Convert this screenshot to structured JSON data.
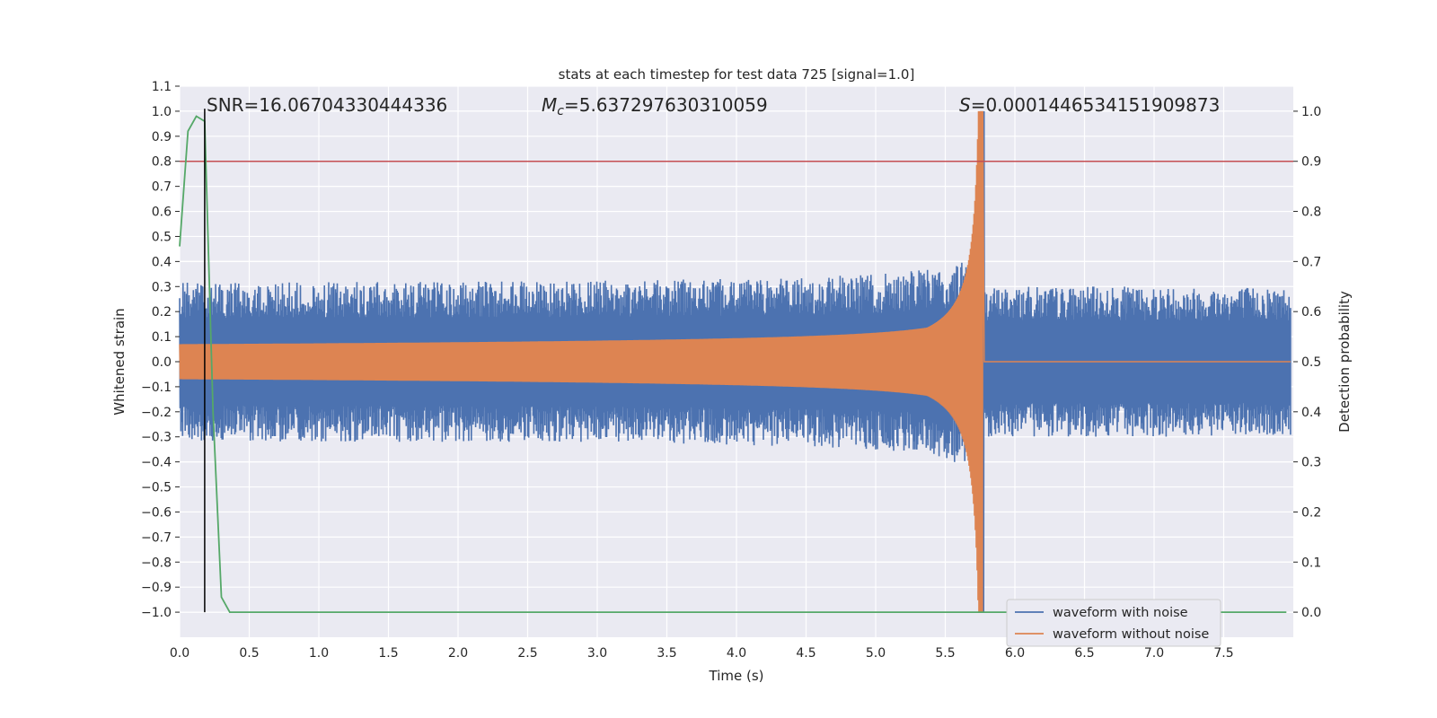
{
  "chart_data": {
    "type": "line",
    "title": "stats at each timestep for test data 725 [signal=1.0]",
    "xlabel": "Time (s)",
    "ylabel": "Whitened strain",
    "y2label": "Detection probability",
    "xlim": [
      0.0,
      8.0
    ],
    "ylim": [
      -1.1,
      1.1
    ],
    "y2lim": [
      -0.05,
      1.05
    ],
    "xticks": [
      "0.0",
      "0.5",
      "1.0",
      "1.5",
      "2.0",
      "2.5",
      "3.0",
      "3.5",
      "4.0",
      "4.5",
      "5.0",
      "5.5",
      "6.0",
      "6.5",
      "7.0",
      "7.5"
    ],
    "yticks": [
      "1.1",
      "1.0",
      "0.9",
      "0.8",
      "0.7",
      "0.6",
      "0.5",
      "0.4",
      "0.3",
      "0.2",
      "0.1",
      "0.0",
      "−0.1",
      "−0.2",
      "−0.3",
      "−0.4",
      "−0.5",
      "−0.6",
      "−0.7",
      "−0.8",
      "−0.9",
      "−1.0"
    ],
    "y2ticks": [
      "1.0",
      "0.9",
      "0.8",
      "0.7",
      "0.6",
      "0.5",
      "0.4",
      "0.3",
      "0.2",
      "0.1",
      "0.0"
    ],
    "annotations": {
      "snr": "SNR=16.06704330444336",
      "mc_symbol": "M",
      "mc_sub": "c",
      "mc_value": "=5.637297630310059",
      "s_symbol": "S",
      "s_value": "=0.0001446534151909873"
    },
    "threshold_prob": 0.9,
    "detection_time": 0.18,
    "merger_time": 5.77,
    "series": [
      {
        "name": "waveform with noise",
        "color": "#4c72b0",
        "envelope": {
          "noise_amp": 0.3,
          "pre_merger_peak": 1.0,
          "post_merger_amp": 0.3
        }
      },
      {
        "name": "waveform without noise",
        "color": "#dd8452",
        "envelope": {
          "start_amp": 0.07,
          "peak_amp": 1.0,
          "merger_time": 5.77
        }
      },
      {
        "name": "detection probability",
        "color": "#55a868",
        "axis": "right",
        "x": [
          0.0,
          0.06,
          0.12,
          0.18,
          0.24,
          0.3,
          0.36,
          0.5,
          1.0,
          2.0,
          3.0,
          4.0,
          5.0,
          6.0,
          7.0,
          7.95
        ],
        "values": [
          0.73,
          0.96,
          0.99,
          0.98,
          0.4,
          0.03,
          0.0,
          0.0,
          0.0,
          0.0,
          0.0,
          0.0,
          0.0,
          0.0,
          0.0,
          0.0
        ]
      }
    ],
    "threshold_color": "#c44e52",
    "detection_line_color": "#000000",
    "legend": [
      "waveform with noise",
      "waveform without noise"
    ]
  }
}
